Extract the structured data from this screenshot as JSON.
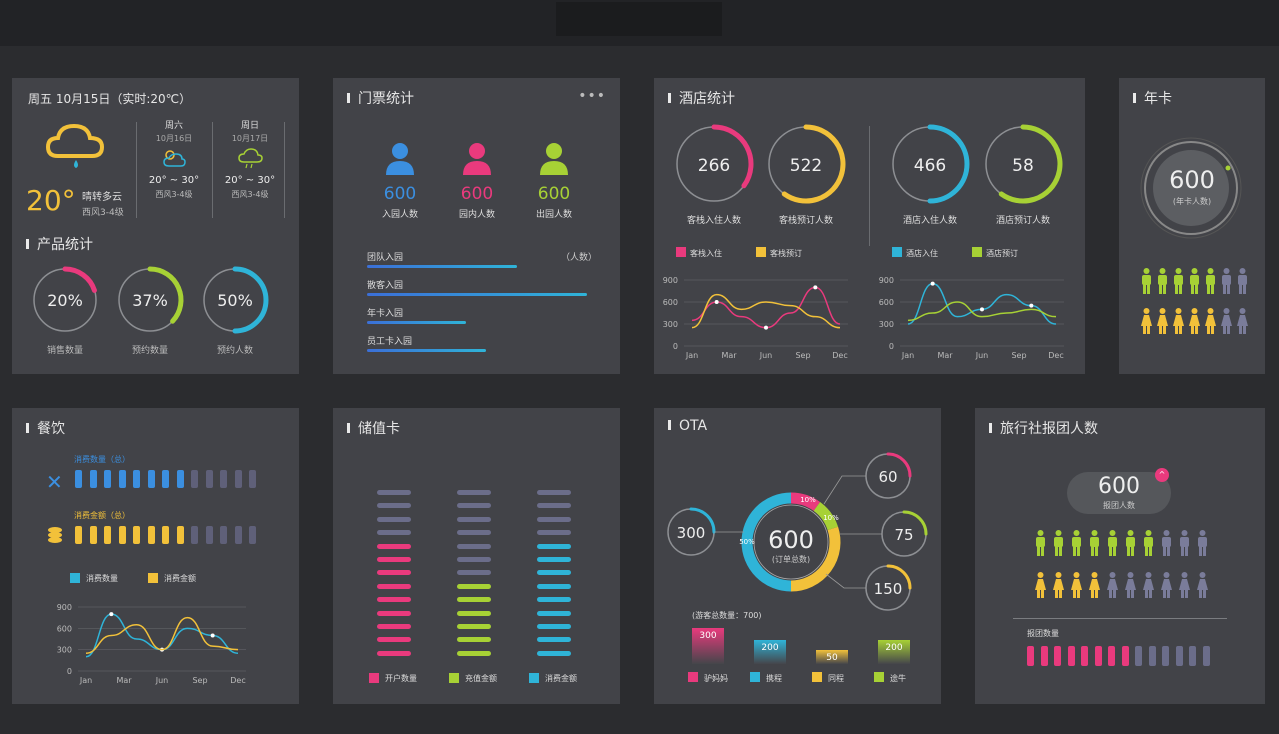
{
  "weather": {
    "header": "周五  10月15日（实时:20℃）",
    "temp": "20°",
    "desc": "晴转多云",
    "wind": "西风3-4级",
    "days": [
      {
        "day": "周六",
        "date": "10月16日",
        "temp": "20° ~ 30°",
        "wind": "西风3-4级"
      },
      {
        "day": "周日",
        "date": "10月17日",
        "temp": "20° ~ 30°",
        "wind": "西风3-4级"
      }
    ]
  },
  "product": {
    "title": "产品统计",
    "rings": [
      {
        "value": "20%",
        "label": "销售数量",
        "color": "#e93a7d",
        "fraction": 0.2
      },
      {
        "value": "37%",
        "label": "预约数量",
        "color": "#a7d135",
        "fraction": 0.37
      },
      {
        "value": "50%",
        "label": "预约人数",
        "color": "#2fb4d8",
        "fraction": 0.5
      }
    ]
  },
  "tickets": {
    "title": "门票统计",
    "menu": "•••",
    "stats": [
      {
        "value": "600",
        "label": "入园人数",
        "color": "#3b8fe0"
      },
      {
        "value": "600",
        "label": "园内人数",
        "color": "#e93a7d"
      },
      {
        "value": "600",
        "label": "出园人数",
        "color": "#a7d135"
      }
    ],
    "unit": "（人数）",
    "bars": [
      {
        "label": "团队入园",
        "fraction": 0.68
      },
      {
        "label": "散客入园",
        "fraction": 1.0
      },
      {
        "label": "年卡入园",
        "fraction": 0.45
      },
      {
        "label": "员工卡入园",
        "fraction": 0.54
      }
    ]
  },
  "hotel": {
    "title": "酒店统计",
    "rings": [
      {
        "value": "266",
        "label": "客栈入住人数",
        "color": "#e93a7d",
        "fraction": 0.35
      },
      {
        "value": "522",
        "label": "客栈预订人数",
        "color": "#f2c13a",
        "fraction": 0.6
      },
      {
        "value": "466",
        "label": "酒店入住人数",
        "color": "#2fb4d8",
        "fraction": 0.5
      },
      {
        "value": "58",
        "label": "酒店预订人数",
        "color": "#a7d135",
        "fraction": 0.6
      }
    ],
    "legend1": [
      {
        "name": "客栈入住",
        "color": "#e93a7d"
      },
      {
        "name": "客栈预订",
        "color": "#f2c13a"
      }
    ],
    "legend2": [
      {
        "name": "酒店入住",
        "color": "#2fb4d8"
      },
      {
        "name": "酒店预订",
        "color": "#a7d135"
      }
    ],
    "yticks": [
      "900",
      "600",
      "300",
      "0"
    ],
    "xticks": [
      "Jan",
      "Mar",
      "Jun",
      "Sep",
      "Dec"
    ]
  },
  "annual": {
    "title": "年卡",
    "value": "600",
    "label": "(年卡人数)",
    "green_count": 5,
    "total": 7
  },
  "dining": {
    "title": "餐饮",
    "row1_label": "消费数量（总）",
    "row1_on": 8,
    "row1_total": 13,
    "row1_color": "#3b8fe0",
    "row2_label": "消费金额（总）",
    "row2_on": 8,
    "row2_total": 13,
    "row2_color": "#f2c13a",
    "legend": [
      {
        "name": "消费数量",
        "color": "#2fb4d8"
      },
      {
        "name": "消费金额",
        "color": "#f2c13a"
      }
    ],
    "yticks": [
      "900",
      "600",
      "300",
      "0"
    ],
    "xticks": [
      "Jan",
      "Mar",
      "Jun",
      "Sep",
      "Dec"
    ]
  },
  "storedcard": {
    "title": "储值卡",
    "legend": [
      {
        "name": "开户数量",
        "color": "#e93a7d"
      },
      {
        "name": "充值金额",
        "color": "#a7d135"
      },
      {
        "name": "消费金额",
        "color": "#2fb4d8"
      }
    ],
    "columns": [
      {
        "on": 9,
        "color": "#e93a7d"
      },
      {
        "on": 6,
        "color": "#a7d135"
      },
      {
        "on": 9,
        "color": "#2fb4d8"
      }
    ],
    "total": 13
  },
  "ota": {
    "title": "OTA",
    "center_value": "600",
    "center_label": "(订单总数)",
    "left_value": "300",
    "right": [
      {
        "value": "60",
        "color": "#e93a7d"
      },
      {
        "value": "75",
        "color": "#a7d135"
      },
      {
        "value": "150",
        "color": "#f2c13a"
      }
    ],
    "pct": [
      "10%",
      "10%",
      "50%"
    ],
    "total_label": "(游客总数量：700)",
    "bars": [
      {
        "value": "300",
        "label": "驴妈妈",
        "color": "#e93a7d"
      },
      {
        "value": "200",
        "label": "携程",
        "color": "#2fb4d8"
      },
      {
        "value": "50",
        "label": "同程",
        "color": "#f2c13a"
      },
      {
        "value": "200",
        "label": "途牛",
        "color": "#a7d135"
      }
    ]
  },
  "travel": {
    "title": "旅行社报团人数",
    "value": "600",
    "label": "报团人数",
    "bar_label": "报团数量",
    "bar_on": 8,
    "bar_total": 14,
    "row1_on": 7,
    "row2_on": 4,
    "row_total": 10
  },
  "colors": {
    "pink": "#e93a7d",
    "yellow": "#f2c13a",
    "cyan": "#2fb4d8",
    "green": "#a7d135",
    "blue": "#3b8fe0",
    "gray": "#6b6d8a"
  }
}
